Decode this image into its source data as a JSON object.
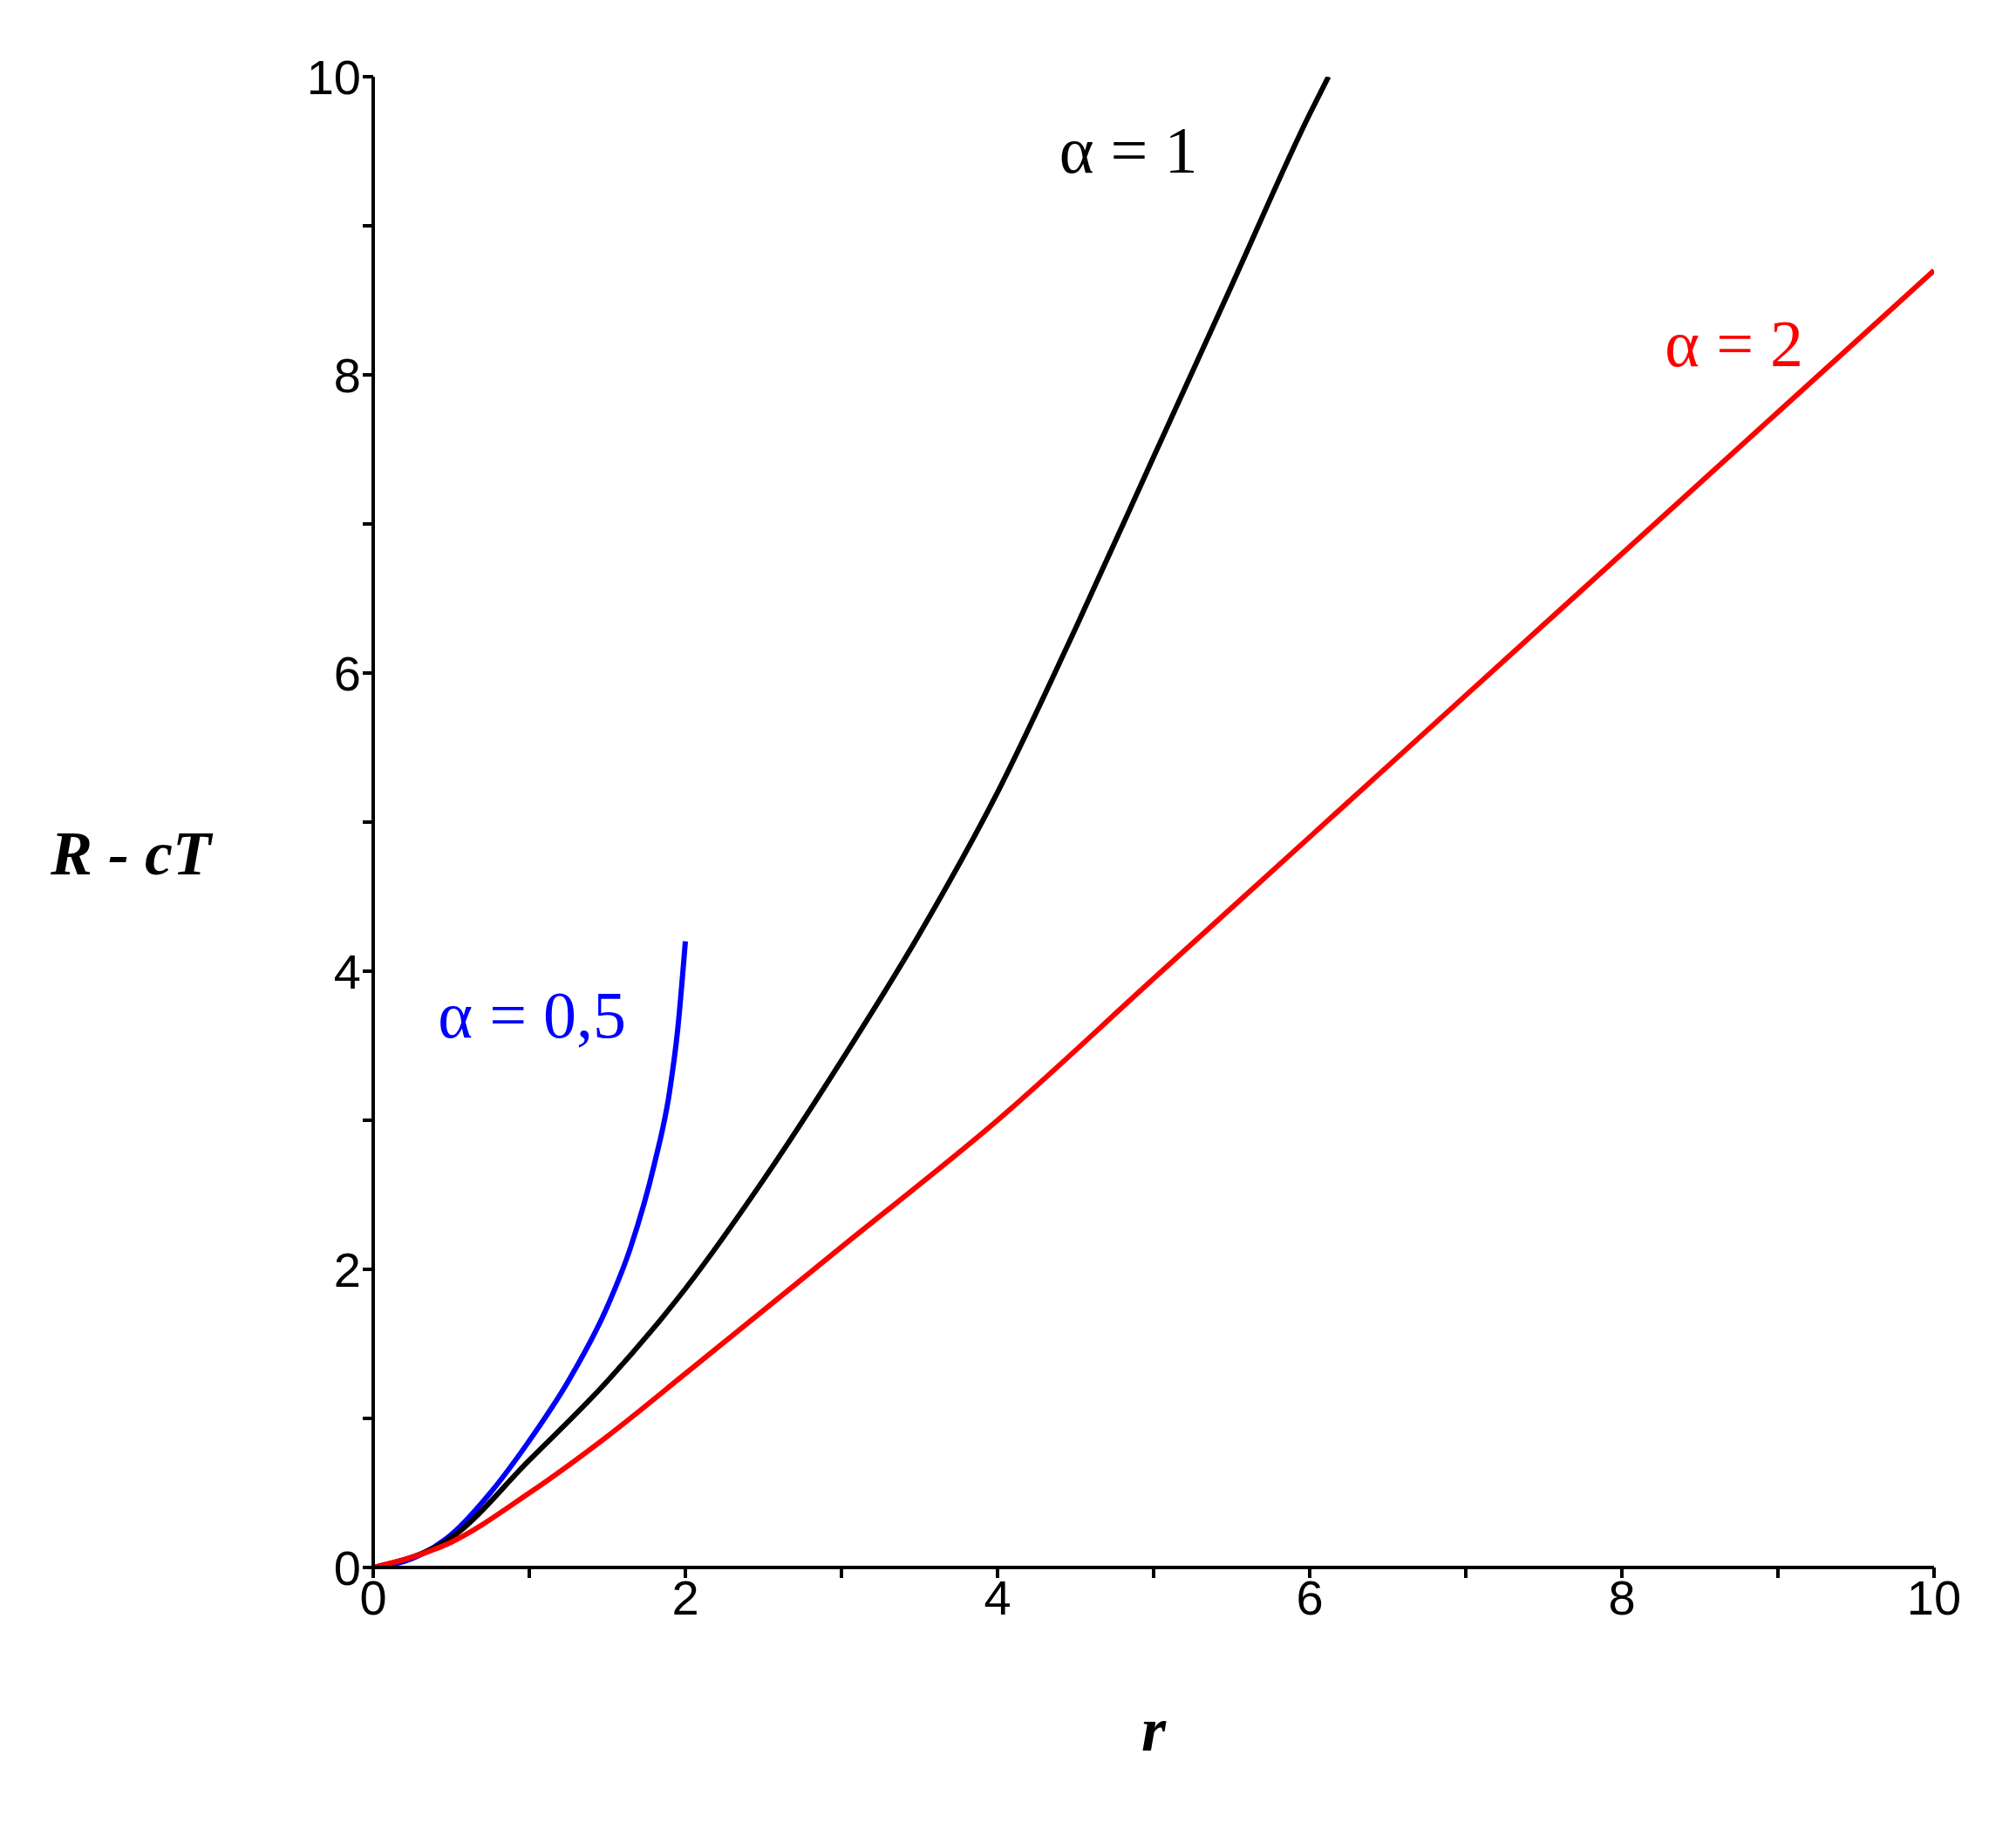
{
  "chart_data": {
    "type": "line",
    "xlabel": "r",
    "ylabel": "R - cT",
    "xlim": [
      0,
      10
    ],
    "ylim": [
      0,
      10
    ],
    "xticks": [
      0,
      {
        "value": 1,
        "label": null
      },
      2,
      {
        "value": 3,
        "label": null
      },
      4,
      {
        "value": 5,
        "label": null
      },
      6,
      {
        "value": 7,
        "label": null
      },
      8,
      {
        "value": 9,
        "label": null
      },
      10
    ],
    "yticks": [
      0,
      {
        "value": 1,
        "label": null
      },
      2,
      {
        "value": 3,
        "label": null
      },
      4,
      {
        "value": 5,
        "label": null
      },
      6,
      {
        "value": 7,
        "label": null
      },
      8,
      {
        "value": 9,
        "label": null
      },
      10
    ],
    "grid": false,
    "legend": false,
    "marker": "none",
    "line_style": "solid",
    "series": [
      {
        "name": "α = 0,5",
        "color": "#0000ff",
        "x": [
          0,
          0.25,
          0.5,
          0.75,
          1,
          1.25,
          1.5,
          1.65,
          1.8,
          1.9,
          1.95,
          2
        ],
        "values": [
          0,
          0.06,
          0.22,
          0.5,
          0.85,
          1.25,
          1.75,
          2.15,
          2.7,
          3.2,
          3.6,
          4.2
        ]
      },
      {
        "name": "α = 1",
        "color": "#000000",
        "x": [
          0,
          0.5,
          1,
          1.5,
          2,
          2.5,
          3,
          3.5,
          4,
          4.5,
          5,
          5.5,
          6,
          6.12
        ],
        "values": [
          0,
          0.2,
          0.72,
          1.25,
          1.87,
          2.6,
          3.4,
          4.25,
          5.2,
          6.3,
          7.45,
          8.6,
          9.75,
          10
        ]
      },
      {
        "name": "α = 2",
        "color": "#ff0000",
        "x": [
          0,
          0.5,
          1,
          1.5,
          2,
          3,
          4,
          5,
          6,
          7,
          8,
          9,
          10
        ],
        "values": [
          0,
          0.17,
          0.5,
          0.88,
          1.3,
          2.15,
          3.0,
          3.95,
          4.9,
          5.85,
          6.8,
          7.75,
          8.7
        ]
      }
    ]
  }
}
